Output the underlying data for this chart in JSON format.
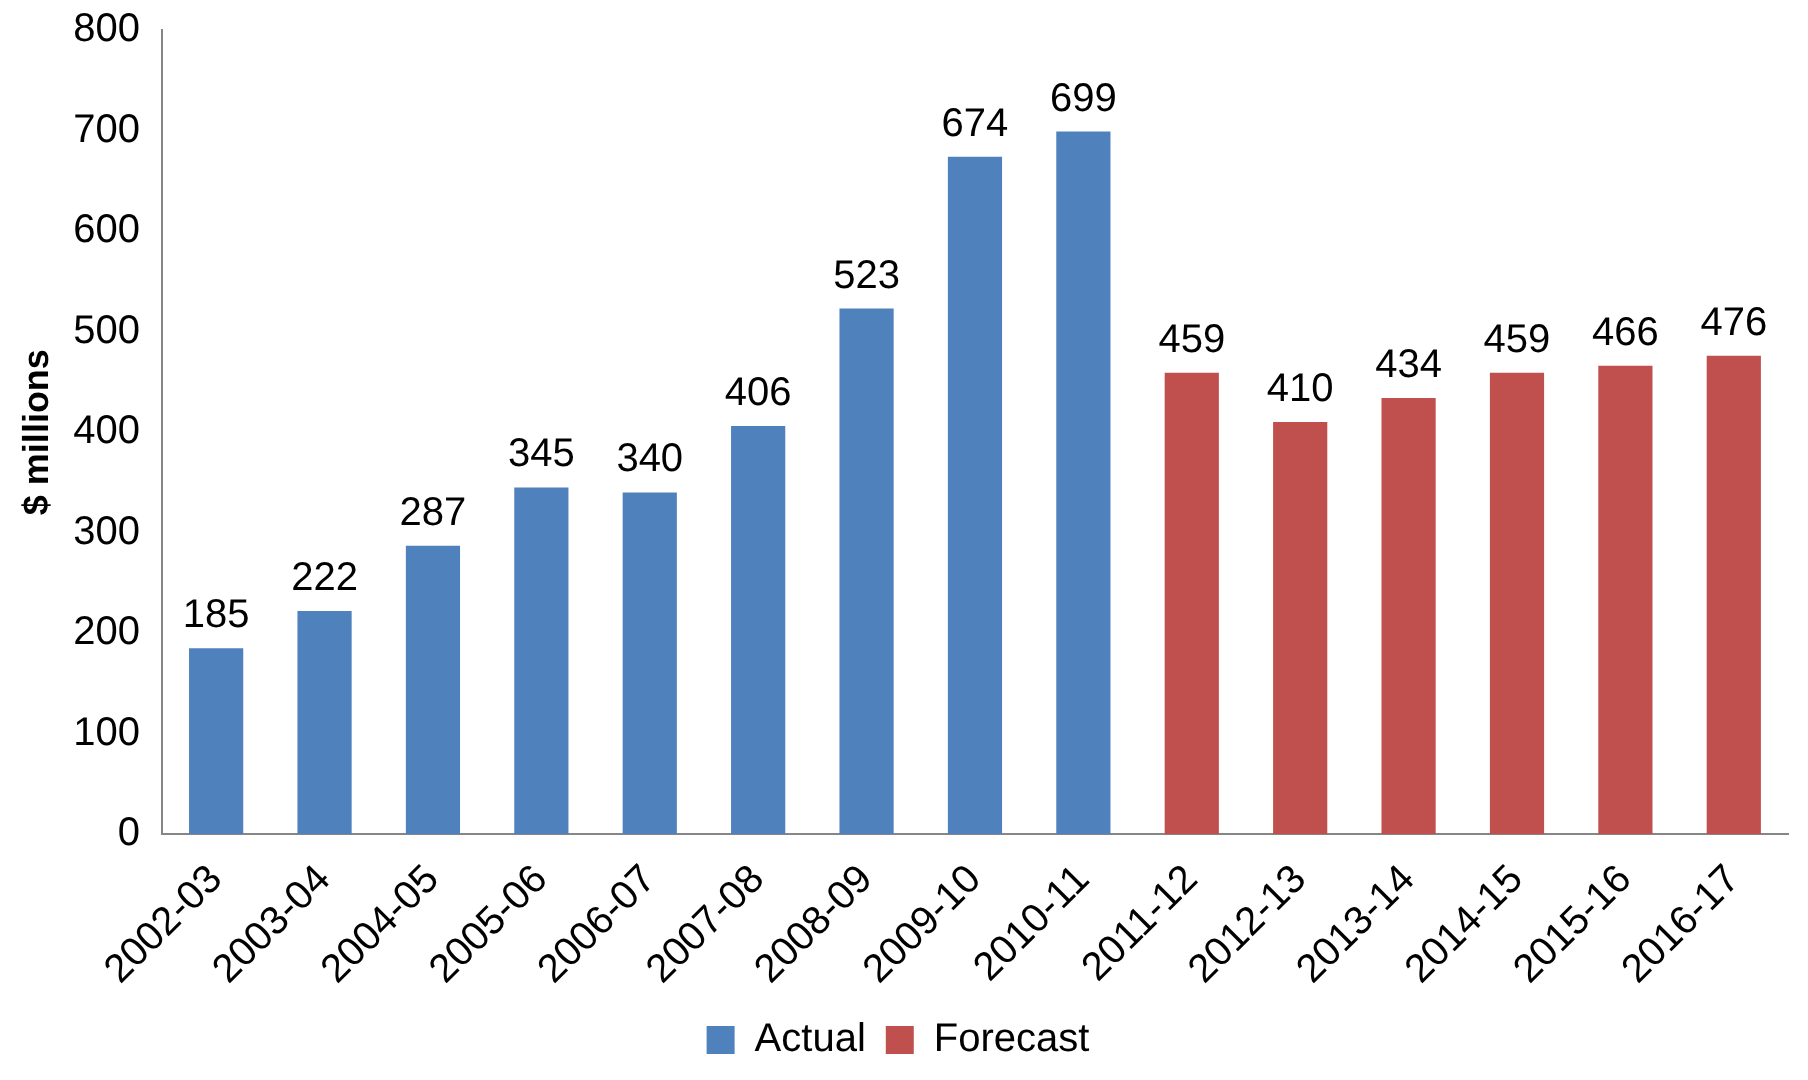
{
  "chart_data": {
    "type": "bar",
    "ylabel": "$ millions",
    "categories": [
      "2002-03",
      "2003-04",
      "2004-05",
      "2005-06",
      "2006-07",
      "2007-08",
      "2008-09",
      "2009-10",
      "2010-11",
      "2011-12",
      "2012-13",
      "2013-14",
      "2014-15",
      "2015-16",
      "2016-17"
    ],
    "series": [
      {
        "name": "Actual",
        "color": "#4f81bd",
        "values": [
          185,
          222,
          287,
          345,
          340,
          406,
          523,
          674,
          699,
          null,
          null,
          null,
          null,
          null,
          null
        ]
      },
      {
        "name": "Forecast",
        "color": "#c0504d",
        "values": [
          null,
          null,
          null,
          null,
          null,
          null,
          null,
          null,
          null,
          459,
          410,
          434,
          459,
          466,
          476
        ]
      }
    ],
    "ylim": [
      0,
      800
    ],
    "yticks": [
      0,
      100,
      200,
      300,
      400,
      500,
      600,
      700,
      800
    ],
    "grid": false,
    "legend": "bottom",
    "data_labels": true
  }
}
